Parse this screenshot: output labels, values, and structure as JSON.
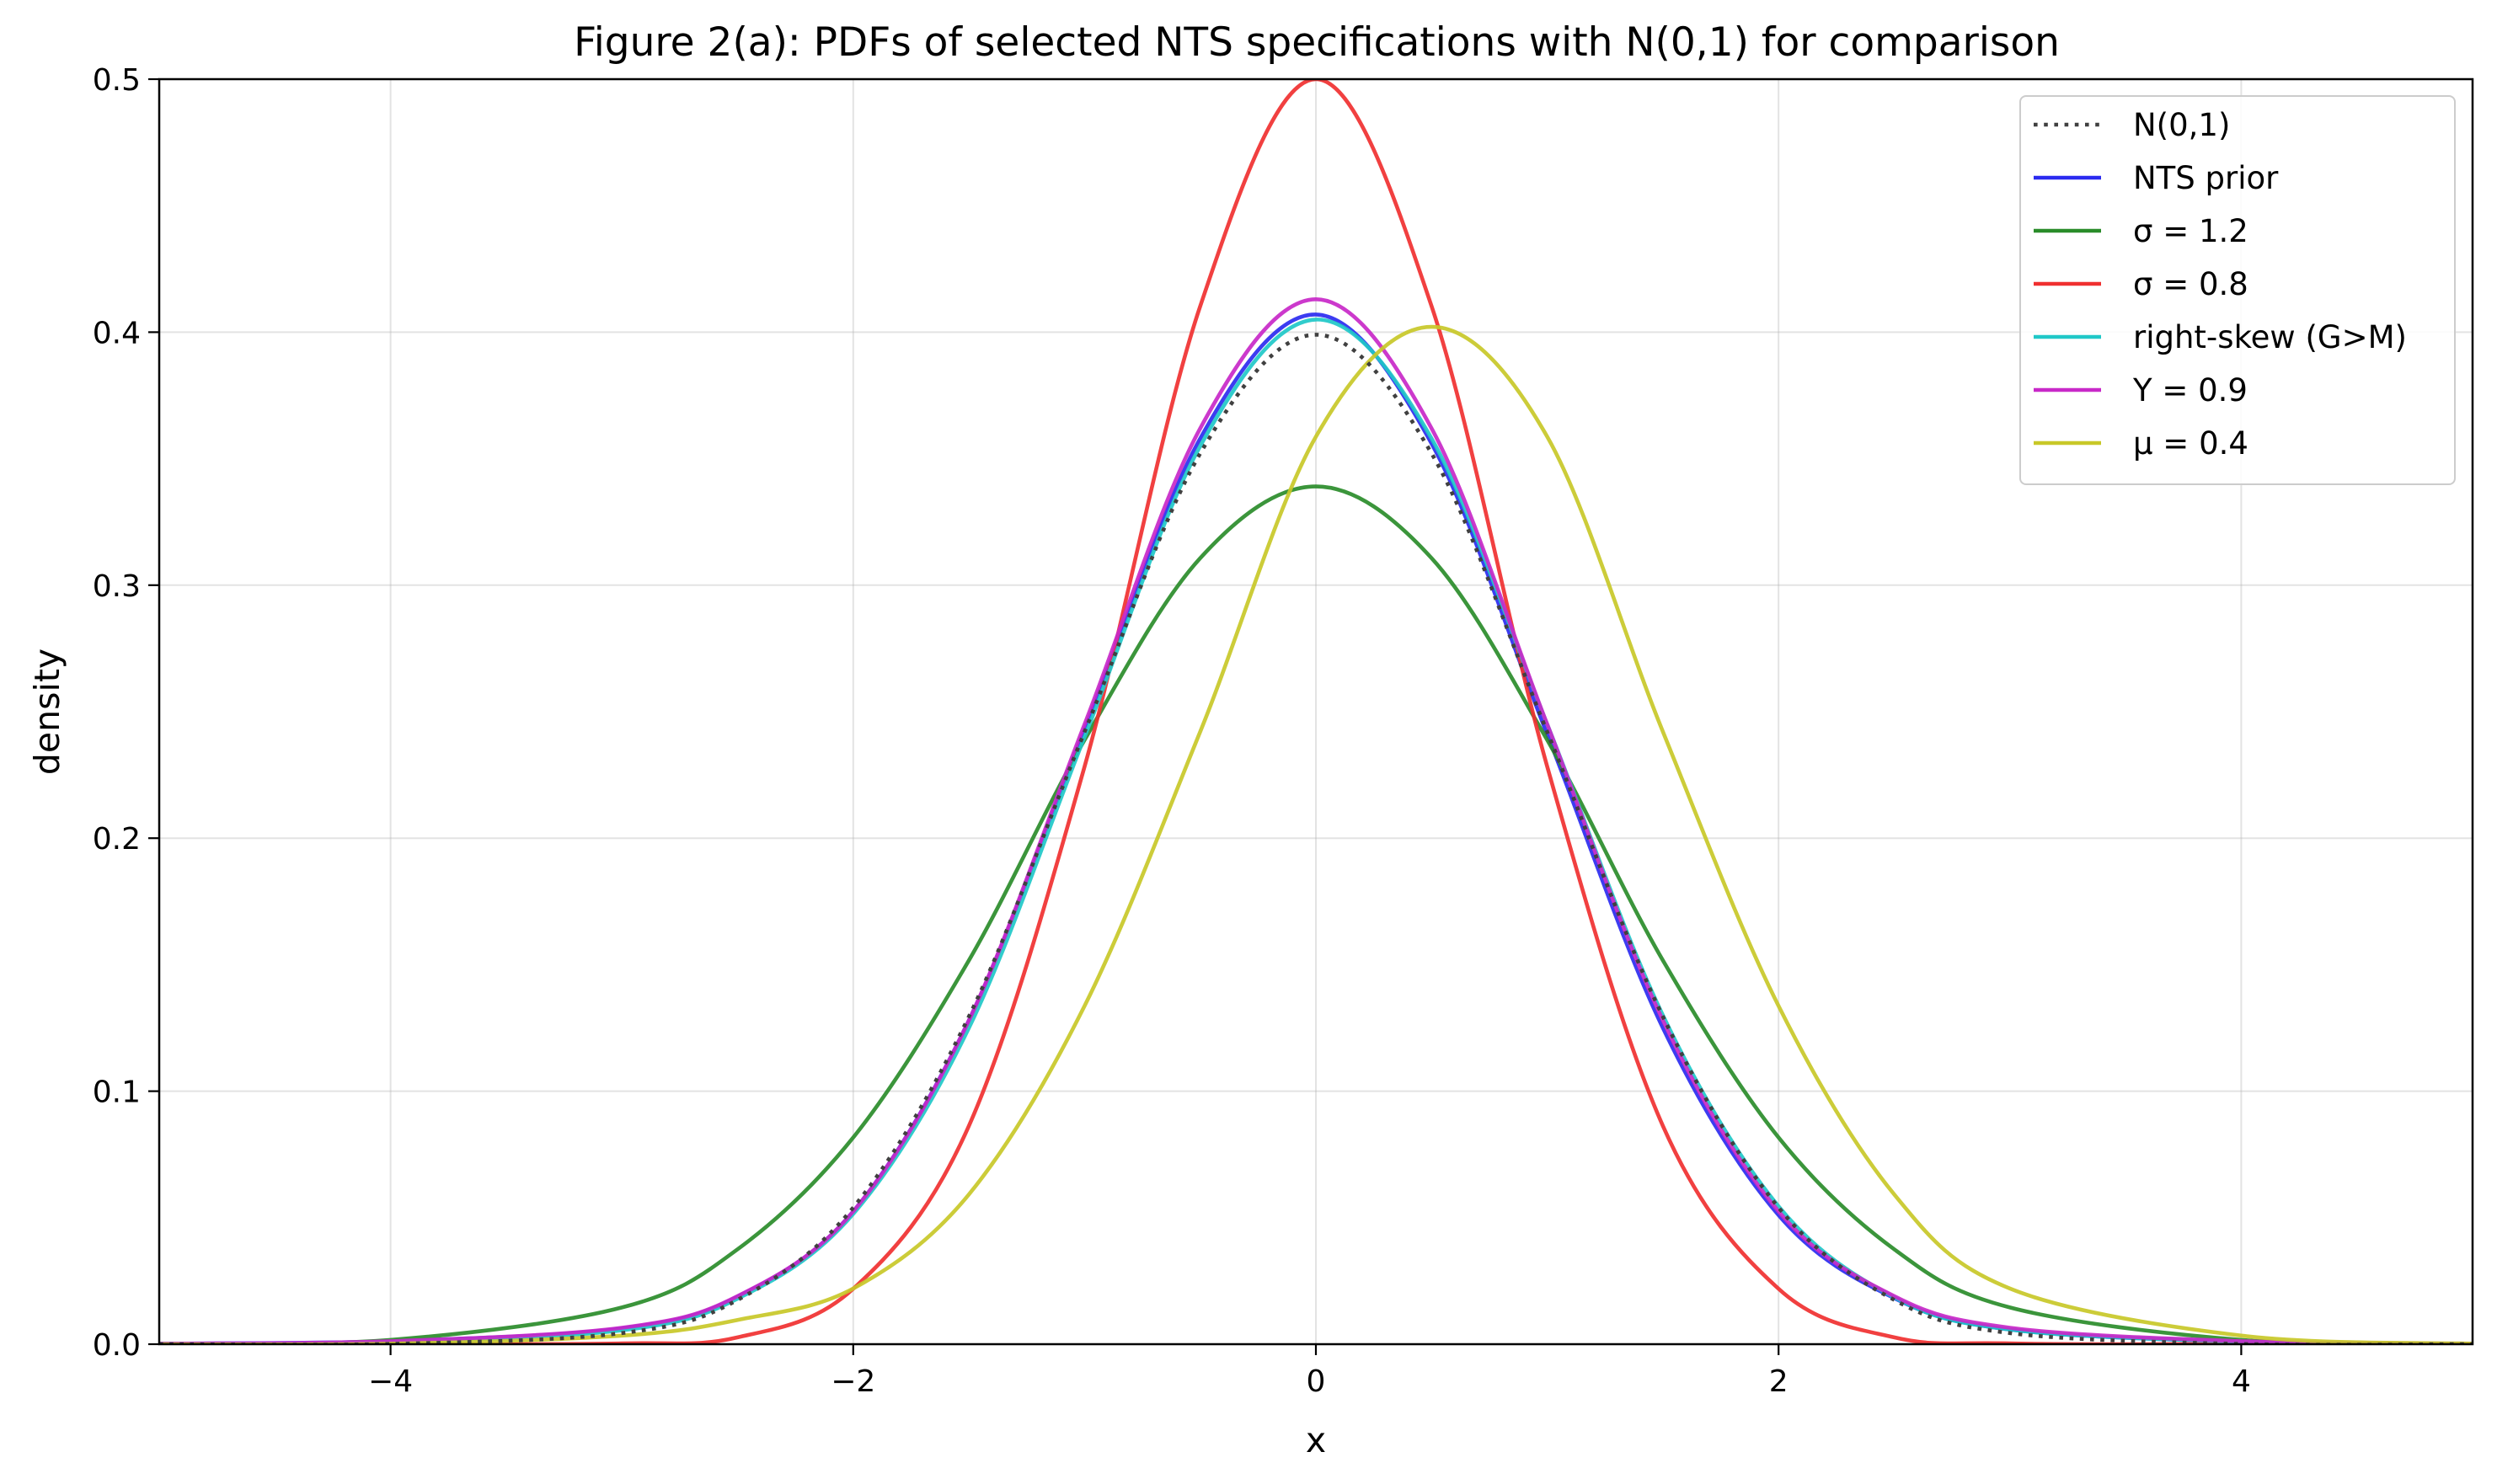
{
  "chart_data": {
    "type": "line",
    "title": "Figure 2(a): PDFs of selected NTS specifications with N(0,1) for comparison",
    "xlabel": "x",
    "ylabel": "density",
    "xlim": [
      -5,
      5
    ],
    "ylim": [
      0,
      0.5
    ],
    "x_ticks": [
      -4,
      -2,
      0,
      2,
      4
    ],
    "x_tick_labels": [
      "−4",
      "−2",
      "0",
      "2",
      "4"
    ],
    "y_ticks": [
      0.0,
      0.1,
      0.2,
      0.3,
      0.4,
      0.5
    ],
    "y_tick_labels": [
      "0.0",
      "0.1",
      "0.2",
      "0.3",
      "0.4",
      "0.5"
    ],
    "grid": true,
    "legend_position": "top-right",
    "x": [
      -5,
      -4,
      -3,
      -2.5,
      -2,
      -1.5,
      -1,
      -0.5,
      0,
      0.5,
      1,
      1.5,
      2,
      2.5,
      3,
      4,
      5
    ],
    "series": [
      {
        "name": "N(0,1)",
        "color": "#404040",
        "dash": "dotted",
        "values": [
          0.0,
          0.0001,
          0.0044,
          0.0175,
          0.054,
          0.1295,
          0.242,
          0.3521,
          0.399,
          0.3521,
          0.242,
          0.1295,
          0.054,
          0.0175,
          0.0044,
          0.0001,
          0.0
        ]
      },
      {
        "name": "NTS prior",
        "color": "#2b2bf0",
        "dash": "solid",
        "values": [
          0.0002,
          0.0012,
          0.0063,
          0.0188,
          0.0525,
          0.128,
          0.243,
          0.358,
          0.407,
          0.356,
          0.241,
          0.125,
          0.051,
          0.0182,
          0.0058,
          0.001,
          0.0002
        ]
      },
      {
        "name": "σ = 1.2",
        "color": "#2a8c2a",
        "dash": "solid",
        "values": [
          0.0001,
          0.0017,
          0.0145,
          0.0375,
          0.0817,
          0.1517,
          0.2388,
          0.3107,
          0.339,
          0.3107,
          0.2388,
          0.1517,
          0.0817,
          0.0375,
          0.0145,
          0.0017,
          0.0001
        ]
      },
      {
        "name": "σ = 0.8",
        "color": "#f03030",
        "dash": "solid",
        "values": [
          0.0,
          0.0,
          0.0003,
          0.0027,
          0.0219,
          0.0863,
          0.2283,
          0.4103,
          0.5,
          0.4103,
          0.2283,
          0.0863,
          0.0219,
          0.0027,
          0.0003,
          0.0,
          0.0
        ]
      },
      {
        "name": "right-skew (G>M)",
        "color": "#20c8c8",
        "dash": "solid",
        "values": [
          0.0001,
          0.0009,
          0.0055,
          0.018,
          0.0515,
          0.125,
          0.24,
          0.355,
          0.405,
          0.358,
          0.245,
          0.13,
          0.0545,
          0.0185,
          0.0058,
          0.001,
          0.0002
        ]
      },
      {
        "name": "Y = 0.9",
        "color": "#c828c8",
        "dash": "solid",
        "values": [
          0.0002,
          0.0012,
          0.0065,
          0.019,
          0.0525,
          0.128,
          0.245,
          0.362,
          0.413,
          0.362,
          0.245,
          0.128,
          0.0525,
          0.019,
          0.0065,
          0.0012,
          0.0002
        ]
      },
      {
        "name": "μ = 0.4",
        "color": "#c8c828",
        "dash": "solid",
        "values": [
          0.0,
          0.0002,
          0.0034,
          0.0096,
          0.022,
          0.0592,
          0.1337,
          0.2421,
          0.3587,
          0.4021,
          0.3587,
          0.2421,
          0.1337,
          0.0592,
          0.022,
          0.0034,
          0.0002
        ]
      }
    ]
  }
}
